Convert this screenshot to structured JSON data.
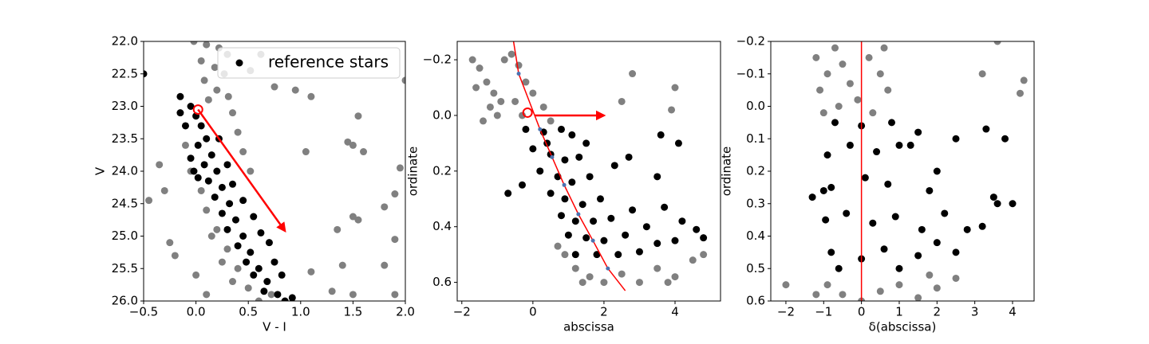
{
  "chart_data": [
    {
      "type": "scatter",
      "xlabel": "V - I",
      "ylabel": "V",
      "xlim": [
        -0.5,
        2.0
      ],
      "ylim": [
        22,
        26
      ],
      "y_inverted": true,
      "xticks": [
        {
          "value": -0.5,
          "label": "−0.5"
        },
        {
          "value": 0,
          "label": "0.0"
        },
        0.5,
        {
          "value": 1,
          "label": "1.0"
        },
        1.5,
        {
          "value": 2,
          "label": "2.0"
        }
      ],
      "yticks": [
        {
          "value": 22,
          "label": "22.0"
        },
        22.5,
        {
          "value": 23,
          "label": "23.0"
        },
        23.5,
        {
          "value": 24,
          "label": "24.0"
        },
        24.5,
        {
          "value": 25,
          "label": "25.0"
        },
        25.5,
        {
          "value": 26,
          "label": "26.0"
        }
      ],
      "legend_location": "upper right",
      "series": [
        {
          "color": "#808080",
          "x": [
            -0.02,
            0.1,
            0.22,
            0.3,
            0.05,
            0.18,
            0.27,
            0.08,
            0.2,
            0.31,
            0.12,
            0.35,
            0.4,
            0.45,
            0.52,
            0.05,
            0.1,
            0.2,
            0.3,
            0.4,
            0.5,
            0.6,
            0.15,
            0.25,
            0.35,
            -0.05,
            -0.1,
            0.0,
            0.1,
            -0.35,
            -0.3,
            -0.25,
            -0.45,
            -0.2,
            0.62,
            0.52,
            0.75,
            0.95,
            1.1,
            1.55,
            1.45,
            1.5,
            1.05,
            1.6,
            1.95,
            1.9,
            1.8,
            1.5,
            1.55,
            1.35,
            1.9,
            1.4,
            1.8,
            1.1,
            1.3,
            1.5,
            1.9,
            2.0,
            0.72
          ],
          "y": [
            22.0,
            22.05,
            22.1,
            22.2,
            22.3,
            22.4,
            22.5,
            22.6,
            22.75,
            22.85,
            22.9,
            23.1,
            23.4,
            23.7,
            24.0,
            24.3,
            24.6,
            24.9,
            25.2,
            25.5,
            25.8,
            26.0,
            25.0,
            25.4,
            25.7,
            24.0,
            23.6,
            25.6,
            25.9,
            23.9,
            24.3,
            25.1,
            24.45,
            25.3,
            22.2,
            22.45,
            22.7,
            22.75,
            22.85,
            23.15,
            23.55,
            23.6,
            23.7,
            23.7,
            23.95,
            24.35,
            24.55,
            24.7,
            24.75,
            24.9,
            25.05,
            25.45,
            25.45,
            25.55,
            25.85,
            25.9,
            25.9,
            22.6,
            25.9
          ]
        },
        {
          "name": "reference stars",
          "color": "#000000",
          "x": [
            -0.5,
            -0.15,
            -0.05,
            0.0,
            0.05,
            0.1,
            0.02,
            0.15,
            0.08,
            0.2,
            0.12,
            0.25,
            0.18,
            0.32,
            0.25,
            0.38,
            0.3,
            0.45,
            0.4,
            0.52,
            0.48,
            0.6,
            0.55,
            0.68,
            0.65,
            0.78,
            0.85,
            0.92,
            -0.1,
            -0.05,
            0.02,
            0.3,
            0.35,
            0.45,
            0.55,
            0.62,
            0.7,
            0.75,
            0.82,
            -0.15,
            -0.02,
            0.22
          ],
          "y": [
            22.5,
            22.85,
            23.0,
            23.15,
            23.3,
            23.5,
            23.6,
            23.75,
            23.9,
            24.0,
            24.15,
            24.25,
            24.4,
            24.5,
            24.65,
            24.75,
            24.9,
            25.0,
            25.15,
            25.25,
            25.4,
            25.5,
            25.6,
            25.7,
            25.85,
            25.9,
            26.0,
            25.95,
            23.3,
            23.8,
            24.1,
            23.9,
            24.2,
            24.45,
            24.7,
            24.95,
            25.1,
            25.4,
            25.6,
            23.1,
            24.0,
            23.5
          ]
        }
      ],
      "circles": [
        {
          "x": 0.02,
          "y": 23.05,
          "color": "#ff0000"
        }
      ],
      "arrows": [
        {
          "x": [
            0.02,
            0.85
          ],
          "y": [
            23.05,
            24.92
          ],
          "color": "#ff0000"
        }
      ]
    },
    {
      "type": "scatter",
      "xlabel": "abscissa",
      "ylabel": "ordinate",
      "xlim": [
        -2.13,
        5.28
      ],
      "ylim": [
        -0.266,
        0.667
      ],
      "y_inverted": true,
      "xticks": [
        {
          "value": -2,
          "label": "−2"
        },
        0,
        2,
        4
      ],
      "yticks": [
        {
          "value": -0.2,
          "label": "−0.2"
        },
        {
          "value": 0,
          "label": "0.0"
        },
        0.2,
        0.4,
        0.6
      ],
      "series": [
        {
          "color": "#808080",
          "x": [
            -1.7,
            -1.5,
            -1.3,
            -1.1,
            -0.9,
            -1.6,
            -1.2,
            -0.8,
            -0.6,
            -0.4,
            -0.2,
            0.0,
            0.3,
            -0.5,
            -0.3,
            0.5,
            -1.0,
            -1.4,
            2.5,
            2.8,
            4.0,
            3.9,
            0.9,
            1.2,
            1.6,
            2.0,
            2.5,
            3.0,
            3.5,
            4.0,
            4.5,
            4.8,
            1.4,
            3.8,
            0.7
          ],
          "y": [
            -0.2,
            -0.17,
            -0.12,
            -0.08,
            -0.05,
            -0.1,
            -0.03,
            -0.2,
            -0.22,
            -0.18,
            -0.12,
            -0.08,
            -0.03,
            -0.05,
            0.0,
            0.02,
            0.0,
            0.02,
            -0.05,
            -0.15,
            -0.1,
            -0.02,
            0.5,
            0.55,
            0.58,
            0.6,
            0.57,
            0.6,
            0.55,
            0.58,
            0.52,
            0.5,
            0.6,
            0.6,
            0.47
          ]
        },
        {
          "color": "#000000",
          "x": [
            -0.2,
            0.3,
            0.8,
            1.1,
            0.0,
            0.5,
            0.9,
            1.3,
            0.2,
            0.7,
            1.1,
            1.6,
            0.5,
            0.9,
            1.4,
            1.9,
            0.8,
            1.2,
            1.7,
            2.2,
            1.0,
            1.5,
            2.0,
            2.6,
            1.2,
            1.8,
            2.4,
            3.0,
            3.5,
            4.0,
            4.8,
            4.2,
            3.7,
            3.2,
            2.8,
            4.6,
            4.1,
            3.6,
            2.7,
            3.5,
            -0.7,
            -0.3,
            2.3,
            0.4,
            1.5
          ],
          "y": [
            0.05,
            0.06,
            0.05,
            0.07,
            0.12,
            0.14,
            0.16,
            0.15,
            0.2,
            0.22,
            0.24,
            0.22,
            0.28,
            0.3,
            0.32,
            0.3,
            0.36,
            0.38,
            0.38,
            0.37,
            0.43,
            0.44,
            0.45,
            0.43,
            0.5,
            0.5,
            0.5,
            0.49,
            0.46,
            0.45,
            0.44,
            0.38,
            0.33,
            0.4,
            0.34,
            0.41,
            0.1,
            0.07,
            0.15,
            0.22,
            0.28,
            0.25,
            0.18,
            0.1,
            0.1
          ]
        },
        {
          "mode": "line",
          "color": "#ff0000",
          "x": [
            -0.55,
            -0.4,
            -0.1,
            0.2,
            0.54,
            0.88,
            1.28,
            1.69,
            2.11,
            2.6
          ],
          "y": [
            -0.27,
            -0.15,
            -0.05,
            0.05,
            0.15,
            0.25,
            0.355,
            0.45,
            0.55,
            0.63
          ]
        },
        {
          "color": "#4c72b0",
          "size": "small",
          "x": [
            -0.4,
            0.2,
            0.54,
            0.88,
            1.28,
            1.69,
            2.11
          ],
          "y": [
            -0.15,
            0.05,
            0.15,
            0.25,
            0.355,
            0.45,
            0.55
          ]
        }
      ],
      "circles": [
        {
          "x": -0.15,
          "y": -0.01,
          "color": "#ff0000"
        }
      ],
      "arrows": [
        {
          "x": [
            0.05,
            2.0
          ],
          "y": [
            0.0,
            0.0
          ],
          "color": "#ff0000"
        }
      ]
    },
    {
      "type": "scatter",
      "xlabel": "δ(abscissa)",
      "ylabel": "ordinate",
      "xlim": [
        -2.4,
        4.57
      ],
      "ylim": [
        -0.2,
        0.6
      ],
      "y_inverted": true,
      "xticks": [
        {
          "value": -2,
          "label": "−2"
        },
        {
          "value": -1,
          "label": "−1"
        },
        0,
        1,
        2,
        3,
        4
      ],
      "yticks": [
        {
          "value": -0.2,
          "label": "−0.2"
        },
        {
          "value": -0.1,
          "label": "−0.1"
        },
        {
          "value": 0,
          "label": "0.0"
        },
        0.1,
        0.2,
        0.3,
        0.4,
        0.5,
        0.6
      ],
      "series": [
        {
          "color": "#808080",
          "x": [
            -1.2,
            -1.1,
            -0.9,
            -0.7,
            -0.5,
            -0.3,
            -0.1,
            0.2,
            0.5,
            0.7,
            0.3,
            -0.6,
            -1.0,
            0.6,
            3.6,
            3.2,
            4.2,
            4.3,
            -0.9,
            -0.5,
            0.0,
            0.5,
            1.0,
            1.5,
            2.0,
            2.5,
            -2.0,
            1.8,
            -1.2
          ],
          "y": [
            -0.15,
            -0.05,
            -0.1,
            -0.18,
            -0.13,
            -0.07,
            -0.02,
            -0.15,
            -0.1,
            -0.05,
            0.02,
            0.0,
            0.02,
            -0.18,
            -0.2,
            -0.1,
            -0.04,
            -0.08,
            0.55,
            0.58,
            0.6,
            0.57,
            0.55,
            0.59,
            0.56,
            0.53,
            0.55,
            0.52,
            0.58
          ]
        },
        {
          "color": "#000000",
          "x": [
            -0.7,
            0.0,
            0.8,
            -0.9,
            -0.3,
            0.4,
            1.0,
            -0.8,
            0.1,
            0.7,
            -0.95,
            -0.4,
            0.3,
            0.9,
            -0.8,
            0.0,
            0.6,
            1.0,
            -0.6,
            1.5,
            2.0,
            2.5,
            2.8,
            3.2,
            3.6,
            2.2,
            1.6,
            1.3,
            1.5,
            2.5,
            3.3,
            3.8,
            4.0,
            3.5,
            -1.3,
            -1.0,
            2.0,
            1.8
          ],
          "y": [
            0.05,
            0.06,
            0.05,
            0.15,
            0.12,
            0.14,
            0.12,
            0.25,
            0.22,
            0.24,
            0.35,
            0.33,
            0.36,
            0.34,
            0.45,
            0.47,
            0.44,
            0.5,
            0.5,
            0.46,
            0.42,
            0.45,
            0.38,
            0.37,
            0.3,
            0.33,
            0.38,
            0.12,
            0.08,
            0.1,
            0.07,
            0.1,
            0.3,
            0.28,
            0.28,
            0.26,
            0.2,
            0.26
          ]
        }
      ],
      "vlines": [
        {
          "x": 0,
          "color": "#ff0000"
        }
      ]
    }
  ]
}
